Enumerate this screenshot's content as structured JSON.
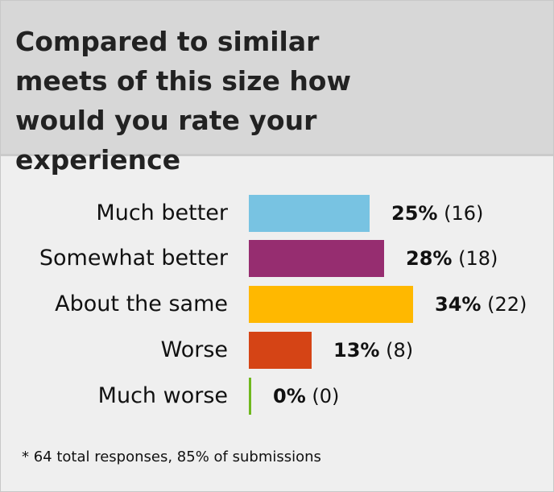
{
  "title": "Compared to similar meets of this size how would you rate your experience",
  "footnote": "* 64 total responses, 85% of submissions",
  "chart_data": {
    "type": "bar",
    "orientation": "horizontal",
    "title": "Compared to similar meets of this size how would you rate your experience",
    "categories": [
      "Much better",
      "Somewhat better",
      "About the same",
      "Worse",
      "Much worse"
    ],
    "values": [
      25,
      28,
      34,
      13,
      0
    ],
    "counts": [
      16,
      18,
      22,
      8,
      0
    ],
    "percent_labels": [
      "25%",
      "28%",
      "34%",
      "13%",
      "0%"
    ],
    "count_labels": [
      "(16)",
      "(18)",
      "(22)",
      "(8)",
      "(0)"
    ],
    "colors": [
      "#78c3e2",
      "#962d70",
      "#ffb800",
      "#d54415",
      "#6fb81e"
    ],
    "xlim": [
      0,
      100
    ],
    "grid": false
  }
}
